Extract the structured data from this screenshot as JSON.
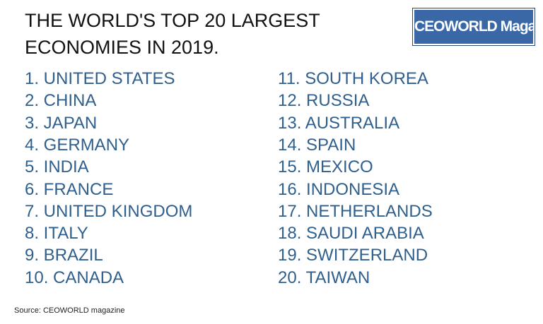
{
  "header": {
    "title_lines": [
      "THE WORLD'S TOP 20 LARGEST",
      "ECONOMIES IN 2019."
    ],
    "logo": "CEOWORLD Magazine"
  },
  "list": {
    "items": [
      "1. UNITED STATES",
      "2. CHINA",
      "3. JAPAN",
      "4. GERMANY",
      "5. INDIA",
      "6. FRANCE",
      "7. UNITED KINGDOM",
      "8. ITALY",
      "9. BRAZIL",
      "10. CANADA",
      "11. SOUTH KOREA",
      "12. RUSSIA",
      "13. AUSTRALIA",
      "14. SPAIN",
      "15. MEXICO",
      "16. INDONESIA",
      "17. NETHERLANDS",
      "18. SAUDI ARABIA",
      "19. SWITZERLAND",
      "20. TAIWAN"
    ]
  },
  "footer": {
    "source": "Source: CEOWORLD magazine"
  }
}
